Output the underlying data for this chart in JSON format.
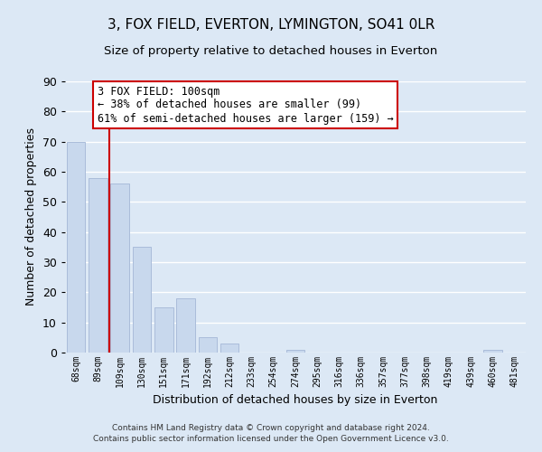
{
  "title": "3, FOX FIELD, EVERTON, LYMINGTON, SO41 0LR",
  "subtitle": "Size of property relative to detached houses in Everton",
  "xlabel": "Distribution of detached houses by size in Everton",
  "ylabel": "Number of detached properties",
  "bar_labels": [
    "68sqm",
    "89sqm",
    "109sqm",
    "130sqm",
    "151sqm",
    "171sqm",
    "192sqm",
    "212sqm",
    "233sqm",
    "254sqm",
    "274sqm",
    "295sqm",
    "316sqm",
    "336sqm",
    "357sqm",
    "377sqm",
    "398sqm",
    "419sqm",
    "439sqm",
    "460sqm",
    "481sqm"
  ],
  "bar_values": [
    70,
    58,
    56,
    35,
    15,
    18,
    5,
    3,
    0,
    0,
    1,
    0,
    0,
    0,
    0,
    0,
    0,
    0,
    0,
    1,
    0
  ],
  "bar_color": "#c8d8ed",
  "bar_edge_color": "#aabcda",
  "vline_x": 1.5,
  "vline_color": "#cc0000",
  "ylim": [
    0,
    90
  ],
  "yticks": [
    0,
    10,
    20,
    30,
    40,
    50,
    60,
    70,
    80,
    90
  ],
  "annotation_title": "3 FOX FIELD: 100sqm",
  "annotation_line1": "← 38% of detached houses are smaller (99)",
  "annotation_line2": "61% of semi-detached houses are larger (159) →",
  "annotation_box_color": "#ffffff",
  "annotation_box_edge": "#cc0000",
  "footer_line1": "Contains HM Land Registry data © Crown copyright and database right 2024.",
  "footer_line2": "Contains public sector information licensed under the Open Government Licence v3.0.",
  "background_color": "#dce8f5",
  "grid_color": "#ffffff"
}
